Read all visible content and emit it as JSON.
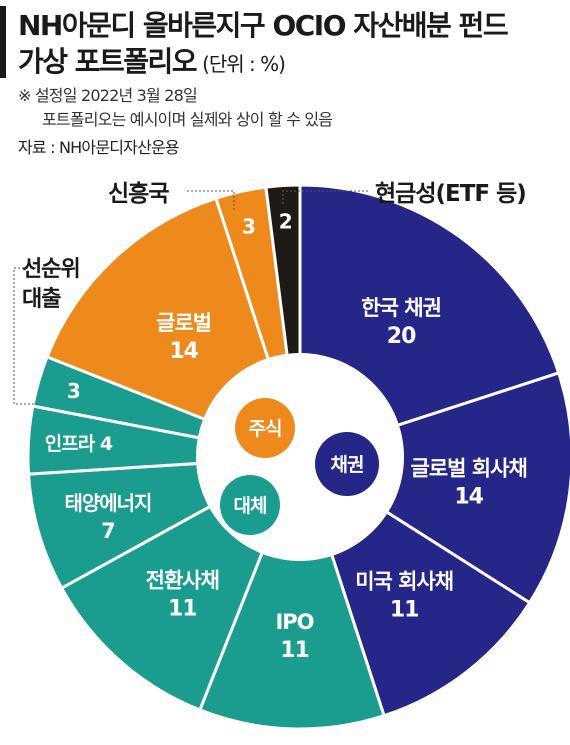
{
  "header": {
    "title_line1": "NH아문디 올바른지구 OCIO 자산배분 펀드",
    "title_line2": "가상 포트폴리오",
    "unit": "(단위 : %)",
    "note_line1": "※ 설정일 2022년 3월 28일",
    "note_line2": "포트폴리오는 예시이며 실제와 상이 할 수 있음",
    "source": "자료 : NH아문디자산운용"
  },
  "colors": {
    "bond": "#252688",
    "equity": "#ee8a1c",
    "alternative": "#1a9c8f",
    "cash": "#1e1a17",
    "divider": "#ffffff"
  },
  "chart_data": {
    "type": "pie",
    "variant": "donut",
    "groups": [
      {
        "key": "bond",
        "label": "채권"
      },
      {
        "key": "equity",
        "label": "주식"
      },
      {
        "key": "alternative",
        "label": "대체"
      }
    ],
    "slices": [
      {
        "label": "한국 채권",
        "value": 20,
        "group": "bond",
        "label_pos": "inside"
      },
      {
        "label": "글로벌 회사채",
        "value": 14,
        "group": "bond",
        "label_pos": "inside"
      },
      {
        "label": "미국 회사채",
        "value": 11,
        "group": "bond",
        "label_pos": "inside"
      },
      {
        "label": "IPO",
        "value": 11,
        "group": "alternative",
        "label_pos": "inside"
      },
      {
        "label": "전환사채",
        "value": 11,
        "group": "alternative",
        "label_pos": "inside"
      },
      {
        "label": "태양에너지",
        "value": 7,
        "group": "alternative",
        "label_pos": "inside"
      },
      {
        "label": "인프라",
        "value": 4,
        "group": "alternative",
        "label_pos": "inside"
      },
      {
        "label": "선순위 대출",
        "value": 3,
        "group": "alternative",
        "label_pos": "outside"
      },
      {
        "label": "글로벌",
        "value": 14,
        "group": "equity",
        "label_pos": "inside"
      },
      {
        "label": "신흥국",
        "value": 3,
        "group": "equity",
        "label_pos": "outside"
      },
      {
        "label": "현금성(ETF 등)",
        "value": 2,
        "group": "cash",
        "label_pos": "outside"
      }
    ]
  }
}
